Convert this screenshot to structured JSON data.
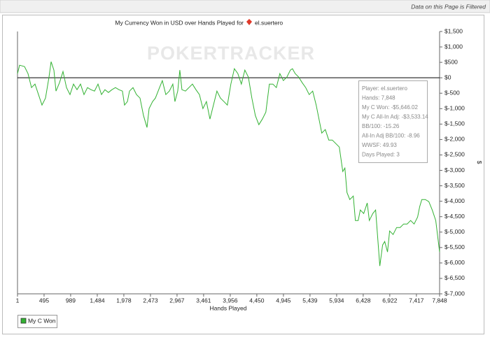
{
  "filter_notice": "Data on this Page is Filtered",
  "watermark": "POKERTRACKER",
  "tooltip": [
    "Player: el.suertero",
    "Hands: 7,848",
    "My C Won: -$5,646.02",
    "My C All-In Adj: -$3,533.14",
    "BB/100: -15.26",
    "All-In Adj BB/100: -8.96",
    "WWSF: 49.93",
    "Days Played: 3"
  ],
  "chart_data": {
    "type": "line",
    "title": "My Currency Won in USD over Hands Played for",
    "player": "el.suertero",
    "x_label": "Hands Played",
    "y_label": "$",
    "xlim": [
      1,
      7848
    ],
    "ylim": [
      -7000,
      1500
    ],
    "xticks": [
      1,
      495,
      989,
      {
        "value": 1484,
        "label": "1,484"
      },
      {
        "value": 1978,
        "label": "1,978"
      },
      {
        "value": 2473,
        "label": "2,473"
      },
      {
        "value": 2967,
        "label": "2,967"
      },
      {
        "value": 3461,
        "label": "3,461"
      },
      {
        "value": 3956,
        "label": "3,956"
      },
      {
        "value": 4450,
        "label": "4,450"
      },
      {
        "value": 4945,
        "label": "4,945"
      },
      {
        "value": 5439,
        "label": "5,439"
      },
      {
        "value": 5934,
        "label": "5,934"
      },
      {
        "value": 6428,
        "label": "6,428"
      },
      {
        "value": 6922,
        "label": "6,922"
      },
      {
        "value": 7417,
        "label": "7,417"
      },
      {
        "value": 7848,
        "label": "7,848"
      }
    ],
    "yticks": [
      {
        "value": 1500,
        "label": "$1,500"
      },
      {
        "value": 1000,
        "label": "$1,000"
      },
      {
        "value": 500,
        "label": "$500"
      },
      {
        "value": 0,
        "label": "$0"
      },
      {
        "value": -500,
        "label": "$-500"
      },
      {
        "value": -1000,
        "label": "$-1,000"
      },
      {
        "value": -1500,
        "label": "$-1,500"
      },
      {
        "value": -2000,
        "label": "$-2,000"
      },
      {
        "value": -2500,
        "label": "$-2,500"
      },
      {
        "value": -3000,
        "label": "$-3,000"
      },
      {
        "value": -3500,
        "label": "$-3,500"
      },
      {
        "value": -4000,
        "label": "$-4,000"
      },
      {
        "value": -4500,
        "label": "$-4,500"
      },
      {
        "value": -5000,
        "label": "$-5,000"
      },
      {
        "value": -5500,
        "label": "$-5,500"
      },
      {
        "value": -6000,
        "label": "$-6,000"
      },
      {
        "value": -6500,
        "label": "$-6,500"
      },
      {
        "value": -7000,
        "label": "$-7,000"
      }
    ],
    "legend": "bottom-left",
    "x": [
      1,
      40,
      131,
      196,
      261,
      326,
      391,
      456,
      521,
      586,
      626,
      678,
      717,
      782,
      847,
      912,
      977,
      1042,
      1107,
      1172,
      1237,
      1302,
      1367,
      1432,
      1497,
      1562,
      1627,
      1692,
      1757,
      1822,
      1887,
      1952,
      1991,
      2044,
      2083,
      2148,
      2213,
      2278,
      2343,
      2408,
      2447,
      2512,
      2564,
      2642,
      2694,
      2759,
      2824,
      2889,
      2928,
      2980,
      3019,
      3058,
      3123,
      3188,
      3253,
      3318,
      3383,
      3448,
      3513,
      3578,
      3643,
      3708,
      3773,
      3838,
      3903,
      3968,
      4033,
      4098,
      4163,
      4228,
      4293,
      4358,
      4423,
      4488,
      4553,
      4618,
      4683,
      4748,
      4813,
      4878,
      4943,
      5008,
      5073,
      5112,
      5164,
      5229,
      5294,
      5359,
      5424,
      5489,
      5554,
      5619,
      5658,
      5723,
      5788,
      5853,
      5918,
      5983,
      6048,
      6087,
      6126,
      6178,
      6243,
      6282,
      6334,
      6373,
      6438,
      6503,
      6542,
      6607,
      6659,
      6698,
      6737,
      6789,
      6828,
      6880,
      6919,
      6984,
      7049,
      7114,
      7179,
      7244,
      7309,
      7374,
      7439,
      7478,
      7517,
      7582,
      7647,
      7712,
      7777,
      7848
    ],
    "series": [
      {
        "name": "My C Won",
        "color": "#33b233",
        "values": [
          136,
          408,
          363,
          136,
          -317,
          -204,
          -544,
          -884,
          -657,
          23,
          521,
          249,
          -431,
          -159,
          204,
          -317,
          -544,
          -204,
          -385,
          -204,
          -544,
          -317,
          -385,
          -431,
          -204,
          -544,
          -385,
          -476,
          -385,
          -317,
          -385,
          -431,
          -884,
          -771,
          -431,
          -317,
          -544,
          -657,
          -1224,
          -1610,
          -997,
          -771,
          -657,
          -317,
          -91,
          -544,
          -431,
          -204,
          -771,
          -431,
          249,
          -385,
          -431,
          -317,
          -204,
          -385,
          -544,
          -997,
          -771,
          -1338,
          -884,
          -431,
          -657,
          -771,
          -884,
          -204,
          295,
          136,
          -204,
          249,
          23,
          -657,
          -1224,
          -1519,
          -1338,
          -1111,
          -204,
          -204,
          -317,
          136,
          -91,
          23,
          249,
          295,
          136,
          23,
          -159,
          -317,
          -544,
          -431,
          -884,
          -1451,
          -1791,
          -1678,
          -2018,
          -2018,
          -2131,
          -2244,
          -3038,
          -2924,
          -3718,
          -3945,
          -3831,
          -4625,
          -4625,
          -4285,
          -4398,
          -4058,
          -4625,
          -4398,
          -4285,
          -5191,
          -6098,
          -5418,
          -5305,
          -5645,
          -4965,
          -5078,
          -4851,
          -4851,
          -4738,
          -4738,
          -4625,
          -4738,
          -4511,
          -4171,
          -3945,
          -3945,
          -4012,
          -4285,
          -4625,
          -5646
        ]
      }
    ]
  }
}
